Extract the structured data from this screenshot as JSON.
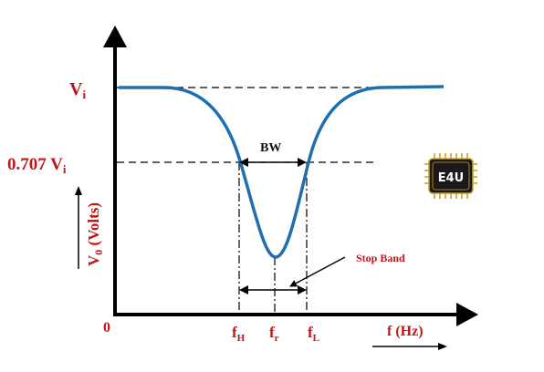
{
  "labels": {
    "vi_main": "V",
    "vi_sub": "i",
    "vi707_main": "0.707 V",
    "vi707_sub": "i",
    "vo_main": "V",
    "vo_sub": "0",
    "vo_rest": " (Volts)",
    "origin": "0",
    "fh_main": "f",
    "fh_sub": "H",
    "fr_main": "f",
    "fr_sub": "r",
    "fl_main": "f",
    "fl_sub": "L",
    "fhz": "f (Hz)",
    "bw": "BW",
    "stop_band": "Stop Band",
    "logo": "E4U"
  },
  "colors": {
    "curve": "#1f6fb0",
    "label": "#c0171c",
    "axis": "#000000",
    "logo_bg": "#1a1a1a",
    "logo_gold": "#c9a227"
  }
}
